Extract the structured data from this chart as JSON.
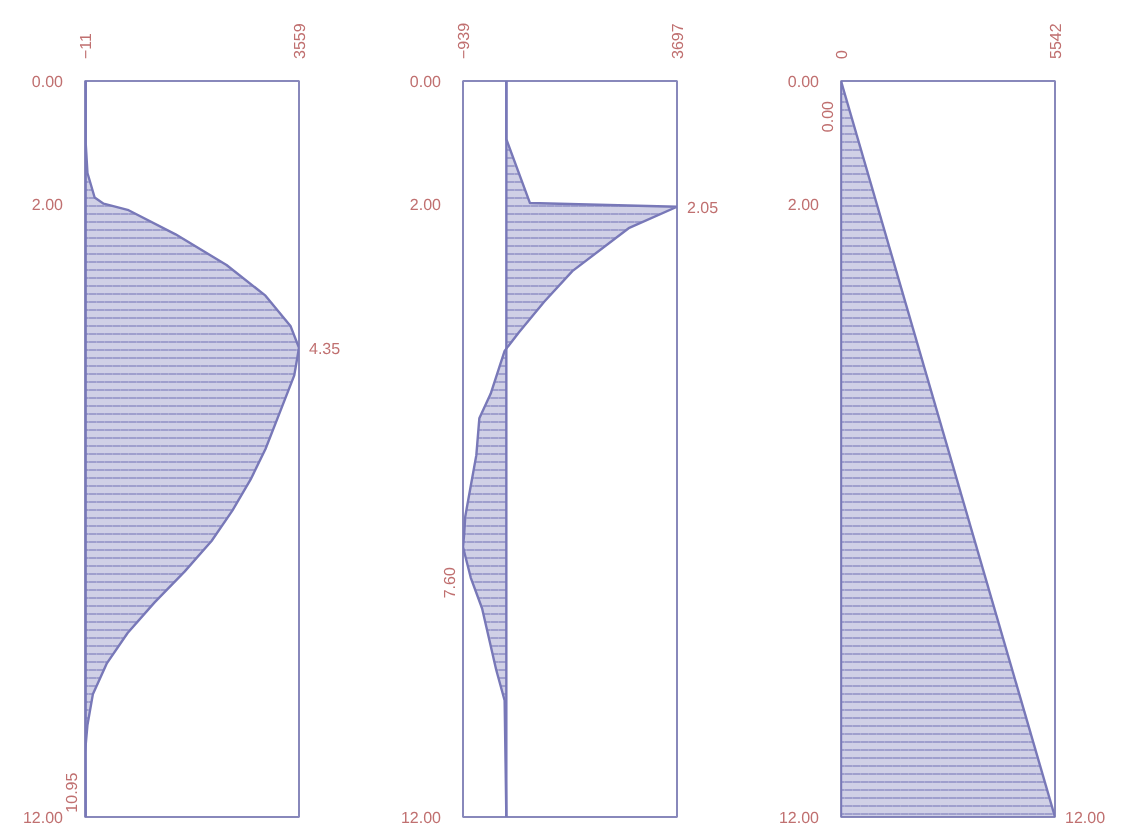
{
  "chart_data": [
    {
      "type": "area",
      "orientation": "horizontal",
      "x": [
        0,
        1.0,
        1.5,
        1.9,
        2.0,
        2.1,
        2.5,
        3.0,
        3.5,
        4.0,
        4.35,
        4.8,
        5.5,
        6.0,
        6.5,
        7.0,
        7.5,
        8.0,
        8.5,
        9.0,
        9.5,
        10.0,
        10.5,
        10.95,
        11.5,
        12
      ],
      "series": [
        {
          "color": "#7878b8",
          "values": [
            0,
            0,
            30,
            150,
            300,
            700,
            1500,
            2350,
            3000,
            3420,
            3559,
            3480,
            3200,
            3000,
            2750,
            2450,
            2100,
            1650,
            1150,
            700,
            350,
            120,
            30,
            -11,
            -5,
            0
          ]
        }
      ],
      "xlim": [
        -11,
        3559
      ],
      "xticks": [
        -11,
        3559
      ],
      "ylim": [
        12,
        0
      ],
      "yticks": [
        {
          "value": 0,
          "label": "0.00"
        },
        {
          "value": 2,
          "label": "2.00"
        },
        {
          "value": 12,
          "label": "12.00"
        }
      ],
      "annotations": [
        {
          "text": "4.35",
          "x": 3559,
          "y": 4.35
        },
        {
          "text": "10.95",
          "x": -11,
          "y": 10.95
        }
      ]
    },
    {
      "type": "area",
      "orientation": "horizontal",
      "x": [
        0,
        0.95,
        1.99,
        2.05,
        2.4,
        3.1,
        3.6,
        4.1,
        4.4,
        5.1,
        5.5,
        6.1,
        6.6,
        7.1,
        7.4,
        7.6,
        8.1,
        8.6,
        9.6,
        10.1,
        12
      ],
      "series": [
        {
          "color": "#7878b8",
          "values": [
            0,
            0,
            512,
            3697,
            2650,
            1430,
            820,
            270,
            -37,
            -340,
            -585,
            -650,
            -770,
            -890,
            -915,
            -939,
            -770,
            -525,
            -220,
            -37,
            0
          ]
        }
      ],
      "xlim": [
        -939,
        3697
      ],
      "xticks": [
        -939,
        3697
      ],
      "ylim": [
        12,
        0
      ],
      "yticks": [
        {
          "value": 0,
          "label": "0.00"
        },
        {
          "value": 2,
          "label": "2.00"
        },
        {
          "value": 12,
          "label": "12.00"
        }
      ],
      "annotations": [
        {
          "text": "2.05",
          "x": 3697,
          "y": 2.05
        },
        {
          "text": "7.60",
          "x": -939,
          "y": 7.6
        }
      ]
    },
    {
      "type": "area",
      "orientation": "horizontal",
      "x": [
        0,
        12
      ],
      "series": [
        {
          "color": "#7878b8",
          "values": [
            0,
            5542
          ]
        }
      ],
      "xlim": [
        0,
        5542
      ],
      "xticks": [
        0,
        5542
      ],
      "ylim": [
        12,
        0
      ],
      "yticks": [
        {
          "value": 0,
          "label": "0.00"
        },
        {
          "value": 2,
          "label": "2.00"
        },
        {
          "value": 12,
          "label": "12.00"
        }
      ],
      "annotations": [
        {
          "text": "0.00",
          "x": 0,
          "y": 0
        },
        {
          "text": "12.00",
          "x": 5542,
          "y": 12
        }
      ]
    }
  ]
}
